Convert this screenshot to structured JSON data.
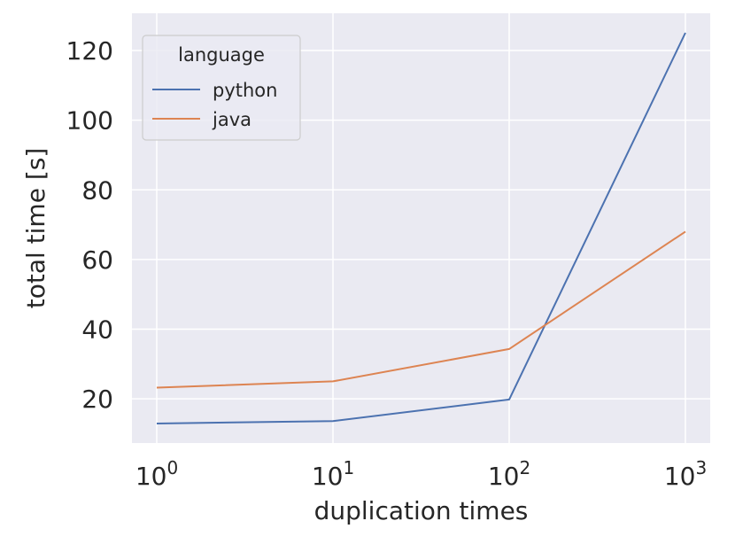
{
  "chart_data": {
    "type": "line",
    "xscale": "log",
    "x": [
      1,
      10,
      100,
      1000
    ],
    "x_tick_labels": [
      {
        "base": "10",
        "exp": "0"
      },
      {
        "base": "10",
        "exp": "1"
      },
      {
        "base": "10",
        "exp": "2"
      },
      {
        "base": "10",
        "exp": "3"
      }
    ],
    "series": [
      {
        "name": "python",
        "color": "#4c72b0",
        "values": [
          12.9,
          13.6,
          19.8,
          125.1
        ]
      },
      {
        "name": "java",
        "color": "#dd8452",
        "values": [
          23.2,
          25.0,
          34.3,
          68.0
        ]
      }
    ],
    "xlabel": "duplication times",
    "ylabel": "total time [s]",
    "y_ticks": [
      "20",
      "40",
      "60",
      "80",
      "100",
      "120"
    ],
    "ylim": [
      7.3,
      130.7
    ],
    "grid": true,
    "legend": {
      "title": "language",
      "placement": "top-left"
    },
    "background_color": "#eaeaf2",
    "grid_color": "#ffffff"
  }
}
